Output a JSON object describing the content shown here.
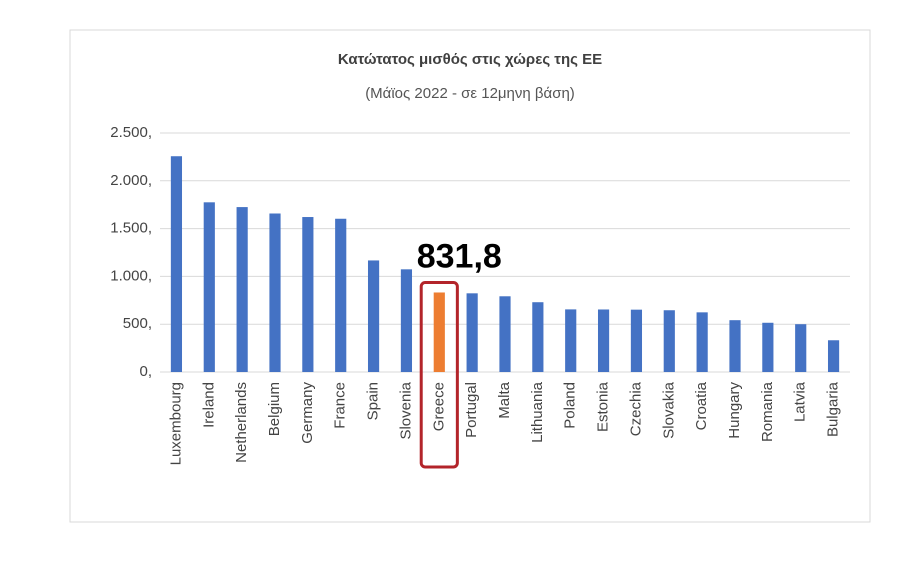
{
  "chart_data": {
    "type": "bar",
    "title": "Κατώτατος μισθός στις χώρες της ΕΕ",
    "subtitle": "(Μάϊος 2022 - σε 12μηνη βάση)",
    "categories": [
      "Luxembourg",
      "Ireland",
      "Netherlands",
      "Belgium",
      "Germany",
      "France",
      "Spain",
      "Slovenia",
      "Greece",
      "Portugal",
      "Malta",
      "Lithuania",
      "Poland",
      "Estonia",
      "Czechia",
      "Slovakia",
      "Croatia",
      "Hungary",
      "Romania",
      "Latvia",
      "Bulgaria"
    ],
    "values": [
      2257,
      1775,
      1725,
      1658,
      1621,
      1603,
      1167,
      1074,
      831.8,
      823,
      792,
      730,
      655,
      654,
      652,
      646,
      624,
      542,
      515,
      500,
      332
    ],
    "value_labels": [
      null,
      null,
      null,
      null,
      null,
      null,
      null,
      null,
      "831,8",
      null,
      null,
      null,
      null,
      null,
      null,
      null,
      null,
      null,
      null,
      null,
      null
    ],
    "colors": [
      "#4472c4",
      "#4472c4",
      "#4472c4",
      "#4472c4",
      "#4472c4",
      "#4472c4",
      "#4472c4",
      "#4472c4",
      "#ed7d31",
      "#4472c4",
      "#4472c4",
      "#4472c4",
      "#4472c4",
      "#4472c4",
      "#4472c4",
      "#4472c4",
      "#4472c4",
      "#4472c4",
      "#4472c4",
      "#4472c4",
      "#4472c4"
    ],
    "highlight_color": "#b3242a",
    "ylim": [
      0,
      2500
    ],
    "yticks": [
      {
        "value": 0,
        "label": "0,"
      },
      {
        "value": 500,
        "label": "500,"
      },
      {
        "value": 1000,
        "label": "1.000,"
      },
      {
        "value": 1500,
        "label": "1.500,"
      },
      {
        "value": 2000,
        "label": "2.000,"
      },
      {
        "value": 2500,
        "label": "2.500,"
      }
    ],
    "grid": true
  }
}
